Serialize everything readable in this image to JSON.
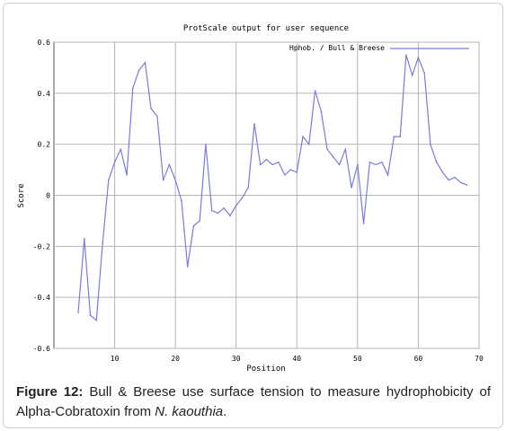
{
  "chart_data": {
    "type": "line",
    "title": "ProtScale output for user sequence",
    "xlabel": "Position",
    "ylabel": "Score",
    "xlim": [
      0,
      70
    ],
    "ylim": [
      -0.6,
      0.6
    ],
    "xticks": [
      10,
      20,
      30,
      40,
      50,
      60,
      70
    ],
    "yticks": [
      -0.6,
      -0.4,
      -0.2,
      0,
      0.2,
      0.4,
      0.6
    ],
    "xtick_labels": [
      "10",
      "20",
      "30",
      "40",
      "50",
      "60",
      "70"
    ],
    "ytick_labels": [
      "-0.6",
      "-0.4",
      "-0.2",
      "0",
      "0.2",
      "0.4",
      "0.6"
    ],
    "grid": true,
    "legend_position": "top-right",
    "series": [
      {
        "name": "Hphob. / Bull & Breese",
        "color": "#7b7bdf",
        "x": [
          4,
          5,
          6,
          7,
          8,
          9,
          10,
          11,
          12,
          13,
          14,
          15,
          16,
          17,
          18,
          19,
          20,
          21,
          22,
          23,
          24,
          25,
          26,
          27,
          28,
          29,
          30,
          31,
          32,
          33,
          34,
          35,
          36,
          37,
          38,
          39,
          40,
          41,
          42,
          43,
          44,
          45,
          46,
          47,
          48,
          49,
          50,
          51,
          52,
          53,
          54,
          55,
          56,
          57,
          58,
          59,
          60,
          61,
          62,
          63,
          64,
          65,
          66,
          67,
          68
        ],
        "y": [
          -0.46,
          -0.17,
          -0.47,
          -0.49,
          -0.19,
          0.06,
          0.13,
          0.18,
          0.08,
          0.42,
          0.49,
          0.52,
          0.34,
          0.31,
          0.06,
          0.12,
          0.06,
          -0.02,
          -0.28,
          -0.12,
          -0.1,
          0.2,
          -0.06,
          -0.07,
          -0.05,
          -0.08,
          -0.04,
          -0.01,
          0.03,
          0.28,
          0.12,
          0.14,
          0.12,
          0.13,
          0.08,
          0.1,
          0.09,
          0.23,
          0.2,
          0.41,
          0.33,
          0.18,
          0.15,
          0.12,
          0.18,
          0.03,
          0.12,
          -0.11,
          0.13,
          0.12,
          0.13,
          0.08,
          0.23,
          0.23,
          0.55,
          0.47,
          0.54,
          0.48,
          0.2,
          0.13,
          0.09,
          0.06,
          0.07,
          0.05,
          0.04
        ]
      }
    ]
  },
  "caption": {
    "label": "Figure 12:",
    "text": " Bull & Breese use surface tension to measure hydrophobicity of Alpha-Cobratoxin from ",
    "species": "N. kaouthia",
    "end": "."
  }
}
